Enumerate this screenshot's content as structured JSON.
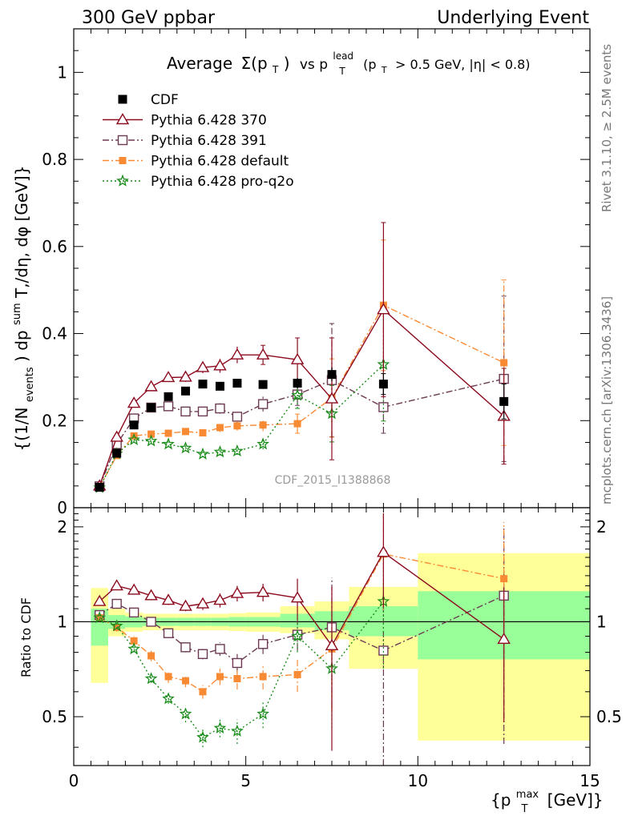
{
  "header": {
    "left": "300 GeV ppbar",
    "right": "Underlying Event"
  },
  "side_labels": {
    "rivet": "Rivet 3.1.10, ≥ 2.5M events",
    "mcplots": "mcplots.cern.ch [arXiv:1306.3436]"
  },
  "watermark": "CDF_2015_I1388868",
  "plot_title": {
    "main": "Average",
    "sigma": "Σ(p",
    "sigma_sub": "T",
    "sigma_close": ")",
    "vs": "vs p",
    "vs_sup": "lead",
    "vs_sub": "T",
    "cut_open": "(p",
    "cut_sub": "T",
    "cut_rest": "> 0.5 GeV, |η| < 0.8)"
  },
  "y_label_main": {
    "part1": "{(1/N",
    "sub1": "events",
    "part2": ") dp",
    "sup2": "sum",
    "part3": "T,/dη, dφ [GeV]}"
  },
  "y_label_ratio": "Ratio to CDF",
  "x_label": {
    "base": "{p",
    "sup": "max",
    "sub": "T",
    "unit": "[GeV]}"
  },
  "colors": {
    "cdf": "#000000",
    "p370": "#8b0a1e",
    "p391": "#6b3a52",
    "pdef": "#f98a34",
    "pq2o": "#1a8c1a",
    "band_inner": "#99ff99",
    "band_outer": "#ffff99"
  },
  "chart_data": [
    {
      "type": "scatter",
      "panel": "main",
      "x_range": [
        0,
        15
      ],
      "y_range": [
        0,
        1.1
      ],
      "x_ticks": [
        {
          "value": 0,
          "label": "0"
        },
        {
          "value": 5,
          "label": "5"
        },
        {
          "value": 10,
          "label": "10"
        },
        {
          "value": 15,
          "label": "15"
        }
      ],
      "y_ticks": [
        {
          "value": 0,
          "label": "0"
        },
        {
          "value": 0.2,
          "label": "0.2"
        },
        {
          "value": 0.4,
          "label": "0.4"
        },
        {
          "value": 0.6,
          "label": "0.6"
        },
        {
          "value": 0.8,
          "label": "0.8"
        },
        {
          "value": 1,
          "label": "1"
        }
      ],
      "legend_position": "top-left",
      "series": [
        {
          "key": "cdf",
          "name": "CDF",
          "marker": "square-filled",
          "line": "none",
          "x": [
            0.75,
            1.25,
            1.75,
            2.25,
            2.75,
            3.25,
            3.75,
            4.25,
            4.75,
            5.5,
            6.5,
            7.5,
            9.0,
            12.5
          ],
          "y": [
            0.047,
            0.125,
            0.19,
            0.23,
            0.255,
            0.268,
            0.284,
            0.279,
            0.286,
            0.283,
            0.286,
            0.306,
            0.284,
            0.244
          ],
          "err": [
            0.005,
            0.005,
            0.006,
            0.006,
            0.006,
            0.007,
            0.008,
            0.008,
            0.009,
            0.01,
            0.012,
            0.016,
            0.024,
            0.04
          ]
        },
        {
          "key": "p370",
          "name": "Pythia 6.428 370",
          "marker": "triangle-open",
          "line": "solid",
          "x": [
            0.75,
            1.25,
            1.75,
            2.25,
            2.75,
            3.25,
            3.75,
            4.25,
            4.75,
            5.5,
            6.5,
            7.5,
            9.0,
            12.5
          ],
          "y": [
            0.05,
            0.162,
            0.24,
            0.278,
            0.299,
            0.3,
            0.322,
            0.326,
            0.351,
            0.351,
            0.34,
            0.25,
            0.455,
            0.21
          ],
          "err": [
            0.004,
            0.008,
            0.008,
            0.008,
            0.01,
            0.011,
            0.013,
            0.016,
            0.019,
            0.022,
            0.05,
            0.14,
            0.2,
            0.11
          ]
        },
        {
          "key": "p391",
          "name": "Pythia 6.428 391",
          "marker": "square-open",
          "line": "dashdot",
          "x": [
            0.75,
            1.25,
            1.75,
            2.25,
            2.75,
            3.25,
            3.75,
            4.25,
            4.75,
            5.5,
            6.5,
            7.5,
            9.0,
            12.5
          ],
          "y": [
            0.049,
            0.146,
            0.205,
            0.23,
            0.233,
            0.221,
            0.221,
            0.228,
            0.209,
            0.238,
            0.26,
            0.293,
            0.231,
            0.296
          ],
          "err": [
            0.004,
            0.006,
            0.007,
            0.007,
            0.008,
            0.009,
            0.009,
            0.012,
            0.013,
            0.017,
            0.025,
            0.13,
            0.06,
            0.19
          ]
        },
        {
          "key": "pdef",
          "name": "Pythia 6.428 default",
          "marker": "square-filled-small",
          "line": "dashdot",
          "x": [
            0.75,
            1.25,
            1.75,
            2.25,
            2.75,
            3.25,
            3.75,
            4.25,
            4.75,
            5.5,
            6.5,
            7.5,
            9.0,
            12.5
          ],
          "y": [
            0.047,
            0.12,
            0.165,
            0.169,
            0.171,
            0.175,
            0.172,
            0.184,
            0.188,
            0.19,
            0.193,
            0.252,
            0.465,
            0.333
          ],
          "err": [
            0.003,
            0.005,
            0.006,
            0.006,
            0.007,
            0.008,
            0.008,
            0.01,
            0.011,
            0.014,
            0.022,
            0.09,
            0.15,
            0.19
          ]
        },
        {
          "key": "pq2o",
          "name": "Pythia 6.428 pro-q2o",
          "marker": "star",
          "line": "dotted",
          "x": [
            0.75,
            1.25,
            1.75,
            2.25,
            2.75,
            3.25,
            3.75,
            4.25,
            4.75,
            5.5,
            6.5,
            7.5,
            9.0,
            12.5
          ],
          "y": [
            0.046,
            0.124,
            0.156,
            0.153,
            0.146,
            0.137,
            0.123,
            0.128,
            0.13,
            0.146,
            0.258,
            0.216,
            0.329,
            null
          ],
          "err": [
            0.003,
            0.005,
            0.005,
            0.005,
            0.006,
            0.007,
            0.007,
            0.008,
            0.009,
            0.012,
            0.03,
            0.065,
            0.13,
            null
          ]
        }
      ]
    },
    {
      "type": "scatter",
      "panel": "ratio",
      "x_range": [
        0,
        15
      ],
      "y_range": [
        0.35,
        2.3
      ],
      "y_scale": "log",
      "reference_line": 1,
      "y_ticks": [
        {
          "value": 0.5,
          "label": "0.5"
        },
        {
          "value": 1,
          "label": "1"
        },
        {
          "value": 2,
          "label": "2"
        }
      ],
      "uncertainty_bands": [
        {
          "x0": 0.5,
          "x1": 1.0,
          "inner": [
            0.84,
            1.1
          ],
          "outer": [
            0.64,
            1.28
          ]
        },
        {
          "x0": 1.0,
          "x1": 1.5,
          "inner": [
            0.95,
            1.05
          ],
          "outer": [
            0.9,
            1.1
          ]
        },
        {
          "x0": 1.5,
          "x1": 2.0,
          "inner": [
            0.96,
            1.04
          ],
          "outer": [
            0.93,
            1.07
          ]
        },
        {
          "x0": 2.0,
          "x1": 2.5,
          "inner": [
            0.97,
            1.03
          ],
          "outer": [
            0.94,
            1.06
          ]
        },
        {
          "x0": 2.5,
          "x1": 3.0,
          "inner": [
            0.97,
            1.03
          ],
          "outer": [
            0.94,
            1.06
          ]
        },
        {
          "x0": 3.0,
          "x1": 3.5,
          "inner": [
            0.97,
            1.03
          ],
          "outer": [
            0.94,
            1.06
          ]
        },
        {
          "x0": 3.5,
          "x1": 4.0,
          "inner": [
            0.97,
            1.03
          ],
          "outer": [
            0.94,
            1.06
          ]
        },
        {
          "x0": 4.0,
          "x1": 4.5,
          "inner": [
            0.97,
            1.03
          ],
          "outer": [
            0.94,
            1.06
          ]
        },
        {
          "x0": 4.5,
          "x1": 5.0,
          "inner": [
            0.965,
            1.035
          ],
          "outer": [
            0.935,
            1.065
          ]
        },
        {
          "x0": 5.0,
          "x1": 6.0,
          "inner": [
            0.965,
            1.035
          ],
          "outer": [
            0.93,
            1.07
          ]
        },
        {
          "x0": 6.0,
          "x1": 7.0,
          "inner": [
            0.96,
            1.06
          ],
          "outer": [
            0.92,
            1.12
          ]
        },
        {
          "x0": 7.0,
          "x1": 8.0,
          "inner": [
            0.94,
            1.08
          ],
          "outer": [
            0.88,
            1.16
          ]
        },
        {
          "x0": 8.0,
          "x1": 10.0,
          "inner": [
            0.9,
            1.12
          ],
          "outer": [
            0.71,
            1.29
          ]
        },
        {
          "x0": 10.0,
          "x1": 15.0,
          "inner": [
            0.76,
            1.25
          ],
          "outer": [
            0.42,
            1.65
          ]
        }
      ],
      "series": [
        {
          "key": "p370",
          "name": "Pythia 6.428 370",
          "x": [
            0.75,
            1.25,
            1.75,
            2.25,
            2.75,
            3.25,
            3.75,
            4.25,
            4.75,
            5.5,
            6.5,
            7.5,
            9.0,
            12.5
          ],
          "y": [
            1.16,
            1.3,
            1.26,
            1.21,
            1.17,
            1.12,
            1.14,
            1.17,
            1.23,
            1.24,
            1.19,
            0.84,
            1.66,
            0.88
          ],
          "err": [
            0.03,
            0.04,
            0.04,
            0.04,
            0.04,
            0.04,
            0.05,
            0.06,
            0.07,
            0.08,
            0.18,
            0.45,
            0.55,
            0.4
          ]
        },
        {
          "key": "p391",
          "name": "Pythia 6.428 391",
          "x": [
            0.75,
            1.25,
            1.75,
            2.25,
            2.75,
            3.25,
            3.75,
            4.25,
            4.75,
            5.5,
            6.5,
            7.5,
            9.0,
            12.5
          ],
          "y": [
            1.05,
            1.14,
            1.07,
            1.0,
            0.92,
            0.83,
            0.79,
            0.82,
            0.74,
            0.85,
            0.91,
            0.96,
            0.81,
            1.21
          ],
          "err": [
            0.03,
            0.03,
            0.03,
            0.03,
            0.03,
            0.03,
            0.03,
            0.04,
            0.05,
            0.06,
            0.1,
            0.42,
            0.5,
            0.8
          ]
        },
        {
          "key": "pdef",
          "name": "Pythia 6.428 default",
          "x": [
            0.75,
            1.25,
            1.75,
            2.25,
            2.75,
            3.25,
            3.75,
            4.25,
            4.75,
            5.5,
            6.5,
            7.5,
            9.0,
            12.5
          ],
          "y": [
            1.03,
            0.96,
            0.87,
            0.78,
            0.67,
            0.65,
            0.6,
            0.67,
            0.66,
            0.67,
            0.68,
            0.82,
            1.64,
            1.37
          ],
          "err": [
            0.02,
            0.03,
            0.03,
            0.03,
            0.03,
            0.03,
            0.03,
            0.04,
            0.05,
            0.06,
            0.08,
            0.3,
            0.55,
            0.7
          ]
        },
        {
          "key": "pq2o",
          "name": "Pythia 6.428 pro-q2o",
          "x": [
            0.75,
            1.25,
            1.75,
            2.25,
            2.75,
            3.25,
            3.75,
            4.25,
            4.75,
            5.5,
            6.5,
            7.5,
            9.0,
            12.5
          ],
          "y": [
            1.03,
            0.97,
            0.82,
            0.66,
            0.57,
            0.51,
            0.43,
            0.46,
            0.45,
            0.51,
            0.9,
            0.71,
            1.16,
            null
          ],
          "err": [
            0.02,
            0.02,
            0.02,
            0.02,
            0.02,
            0.03,
            0.03,
            0.03,
            0.04,
            0.05,
            0.1,
            0.25,
            0.45,
            null
          ]
        }
      ]
    }
  ]
}
